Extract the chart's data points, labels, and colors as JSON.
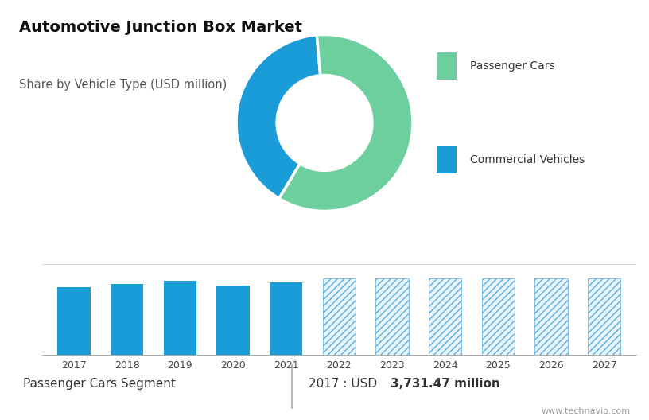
{
  "title": "Automotive Junction Box Market",
  "subtitle": "Share by Vehicle Type (USD million)",
  "donut_values": [
    40,
    60
  ],
  "donut_colors": [
    "#1a9cd8",
    "#6dcf9e"
  ],
  "donut_labels": [
    "Commercial Vehicles",
    "Passenger Cars"
  ],
  "legend_items": [
    {
      "label": "Passenger Cars",
      "color": "#6dcf9e"
    },
    {
      "label": "Commercial Vehicles",
      "color": "#1a9cd8"
    }
  ],
  "bar_years": [
    2017,
    2018,
    2019,
    2020,
    2021,
    2022,
    2023,
    2024,
    2025,
    2026,
    2027
  ],
  "bar_values": [
    3731,
    3900,
    4100,
    3800,
    4000,
    4200,
    4200,
    4200,
    4200,
    4200,
    4200
  ],
  "solid_color": "#1a9cd8",
  "hatch_color": "#5aace0",
  "top_bg_color": "#ccd7e2",
  "footer_left": "Passenger Cars Segment",
  "footer_right_prefix": "2017 : USD ",
  "footer_right_bold": "3,731.47 million",
  "watermark": "www.technavio.com",
  "grid_color": "#d0d0d0",
  "title_fontsize": 14,
  "subtitle_fontsize": 10.5
}
